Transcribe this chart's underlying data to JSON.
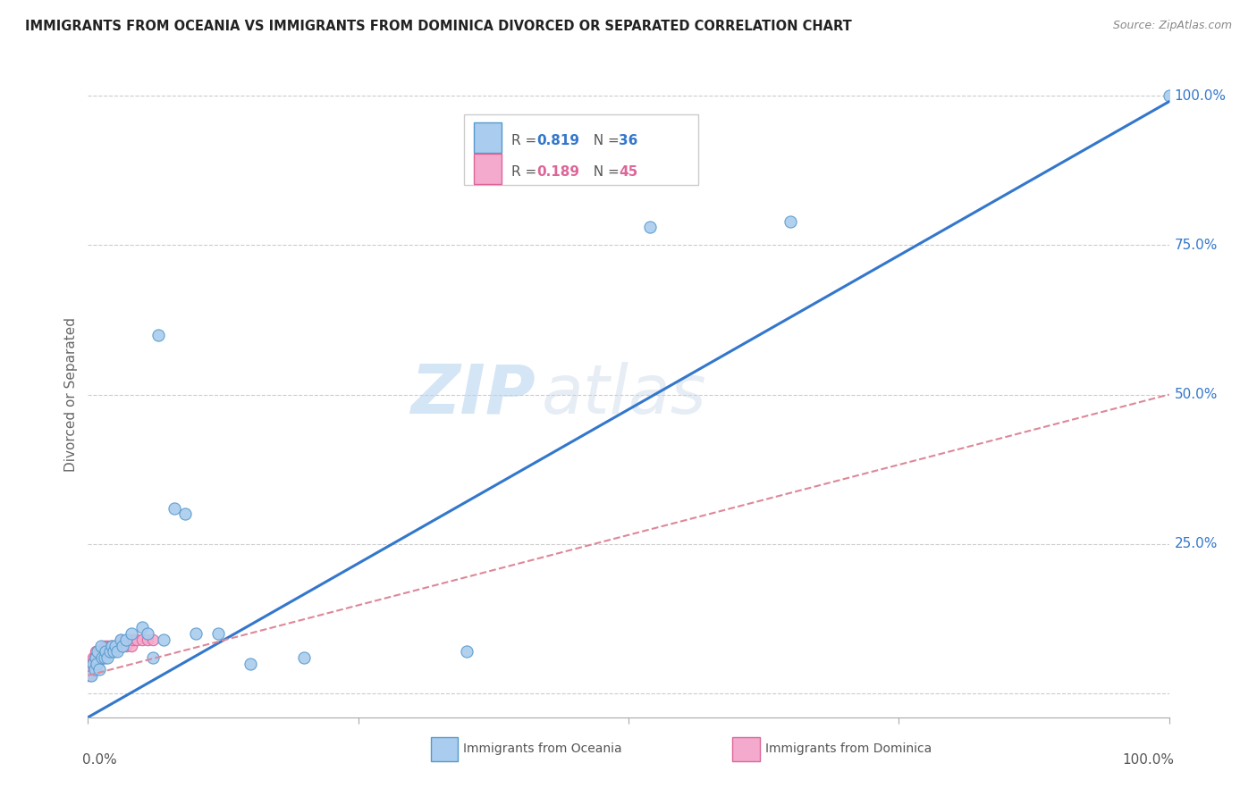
{
  "title": "IMMIGRANTS FROM OCEANIA VS IMMIGRANTS FROM DOMINICA DIVORCED OR SEPARATED CORRELATION CHART",
  "source_text": "Source: ZipAtlas.com",
  "ylabel": "Divorced or Separated",
  "watermark_zip": "ZIP",
  "watermark_atlas": "atlas",
  "oceania_color": "#aaccee",
  "oceania_edge": "#5599cc",
  "dominica_color": "#f4aacc",
  "dominica_edge": "#dd6699",
  "line1_color": "#3377cc",
  "line2_color": "#dd8899",
  "grid_color": "#cccccc",
  "r_color_blue": "#3377cc",
  "r_color_pink": "#dd6699",
  "oceania_x": [
    0.003,
    0.005,
    0.006,
    0.007,
    0.008,
    0.009,
    0.01,
    0.012,
    0.013,
    0.015,
    0.016,
    0.018,
    0.02,
    0.022,
    0.024,
    0.025,
    0.027,
    0.03,
    0.032,
    0.035,
    0.04,
    0.05,
    0.055,
    0.06,
    0.065,
    0.07,
    0.08,
    0.09,
    0.1,
    0.12,
    0.15,
    0.2,
    0.35,
    0.52,
    0.65,
    1.0
  ],
  "oceania_y": [
    0.03,
    0.05,
    0.04,
    0.06,
    0.05,
    0.07,
    0.04,
    0.08,
    0.06,
    0.06,
    0.07,
    0.06,
    0.07,
    0.08,
    0.07,
    0.08,
    0.07,
    0.09,
    0.08,
    0.09,
    0.1,
    0.11,
    0.1,
    0.06,
    0.6,
    0.09,
    0.31,
    0.3,
    0.1,
    0.1,
    0.05,
    0.06,
    0.07,
    0.78,
    0.79,
    1.0
  ],
  "dominica_x": [
    0.0,
    0.001,
    0.002,
    0.003,
    0.004,
    0.005,
    0.005,
    0.006,
    0.006,
    0.007,
    0.007,
    0.008,
    0.008,
    0.009,
    0.009,
    0.01,
    0.01,
    0.011,
    0.012,
    0.012,
    0.013,
    0.013,
    0.014,
    0.015,
    0.015,
    0.016,
    0.017,
    0.018,
    0.019,
    0.02,
    0.021,
    0.022,
    0.024,
    0.026,
    0.028,
    0.03,
    0.032,
    0.035,
    0.038,
    0.04,
    0.042,
    0.045,
    0.05,
    0.055,
    0.06
  ],
  "dominica_y": [
    0.03,
    0.04,
    0.03,
    0.05,
    0.04,
    0.05,
    0.06,
    0.04,
    0.06,
    0.05,
    0.07,
    0.05,
    0.06,
    0.05,
    0.07,
    0.06,
    0.07,
    0.06,
    0.07,
    0.06,
    0.07,
    0.06,
    0.07,
    0.07,
    0.08,
    0.07,
    0.08,
    0.07,
    0.08,
    0.07,
    0.08,
    0.08,
    0.07,
    0.08,
    0.08,
    0.09,
    0.08,
    0.08,
    0.09,
    0.08,
    0.09,
    0.09,
    0.09,
    0.09,
    0.09
  ],
  "line1_x": [
    0.0,
    1.0
  ],
  "line1_y": [
    -0.04,
    0.99
  ],
  "line2_x": [
    0.0,
    1.0
  ],
  "line2_y": [
    0.03,
    0.5
  ],
  "xlim": [
    0.0,
    1.0
  ],
  "ylim": [
    -0.04,
    1.04
  ],
  "yticks": [
    0.0,
    0.25,
    0.5,
    0.75,
    1.0
  ],
  "ytick_labels": [
    "",
    "25.0%",
    "50.0%",
    "75.0%",
    "100.0%"
  ],
  "xtick_labels": [
    "0.0%",
    "100.0%"
  ],
  "title_fontsize": 10.5,
  "source_fontsize": 9,
  "label_fontsize": 11,
  "legend_r1": "R = 0.819",
  "legend_n1": "N = 36",
  "legend_r2": "R = 0.189",
  "legend_n2": "N = 45"
}
